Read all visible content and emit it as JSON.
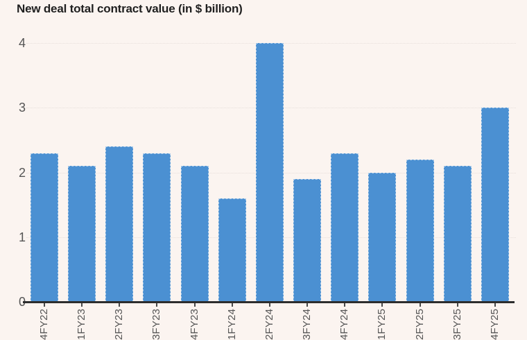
{
  "title": "New deal total contract value (in $ billion)",
  "colors": {
    "background": "#fbf4f0",
    "bar": "#4b90d2",
    "bar_edge": "rgba(255,255,255,0.55)",
    "title_text": "#1f1f1f",
    "axis_text": "#555555",
    "gridline": "#e7dfdb",
    "axis_line": "#2d2d2d"
  },
  "chart_data": {
    "type": "bar",
    "title": "New deal total contract value (in $ billion)",
    "categories": [
      "4FY22",
      "1FY23",
      "2FY23",
      "3FY23",
      "4FY23",
      "1FY24",
      "2FY24",
      "3FY24",
      "4FY24",
      "1FY25",
      "2FY25",
      "3FY25",
      "4FY25"
    ],
    "values": [
      2.3,
      2.1,
      2.4,
      2.3,
      2.1,
      1.6,
      4.0,
      1.9,
      2.3,
      2.0,
      2.2,
      2.1,
      3.0
    ],
    "xlabel": "",
    "ylabel": "",
    "ylim": [
      0,
      4
    ],
    "yticks": [
      4,
      3,
      2,
      1,
      0
    ],
    "grid": true,
    "legend": false,
    "x_label_rotation": -90
  }
}
